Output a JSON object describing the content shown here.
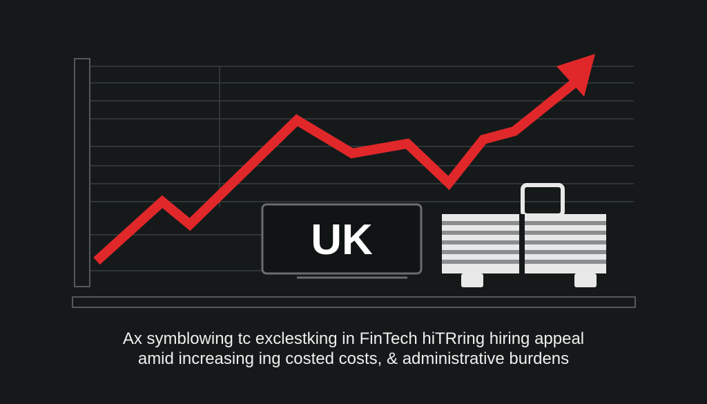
{
  "label": "UK",
  "caption": [
    "Ax symblowing tc exclestking in FinTech hiTRring hiring appeal",
    "amid increasing  ing costed costs, & administrative burdens"
  ]
}
